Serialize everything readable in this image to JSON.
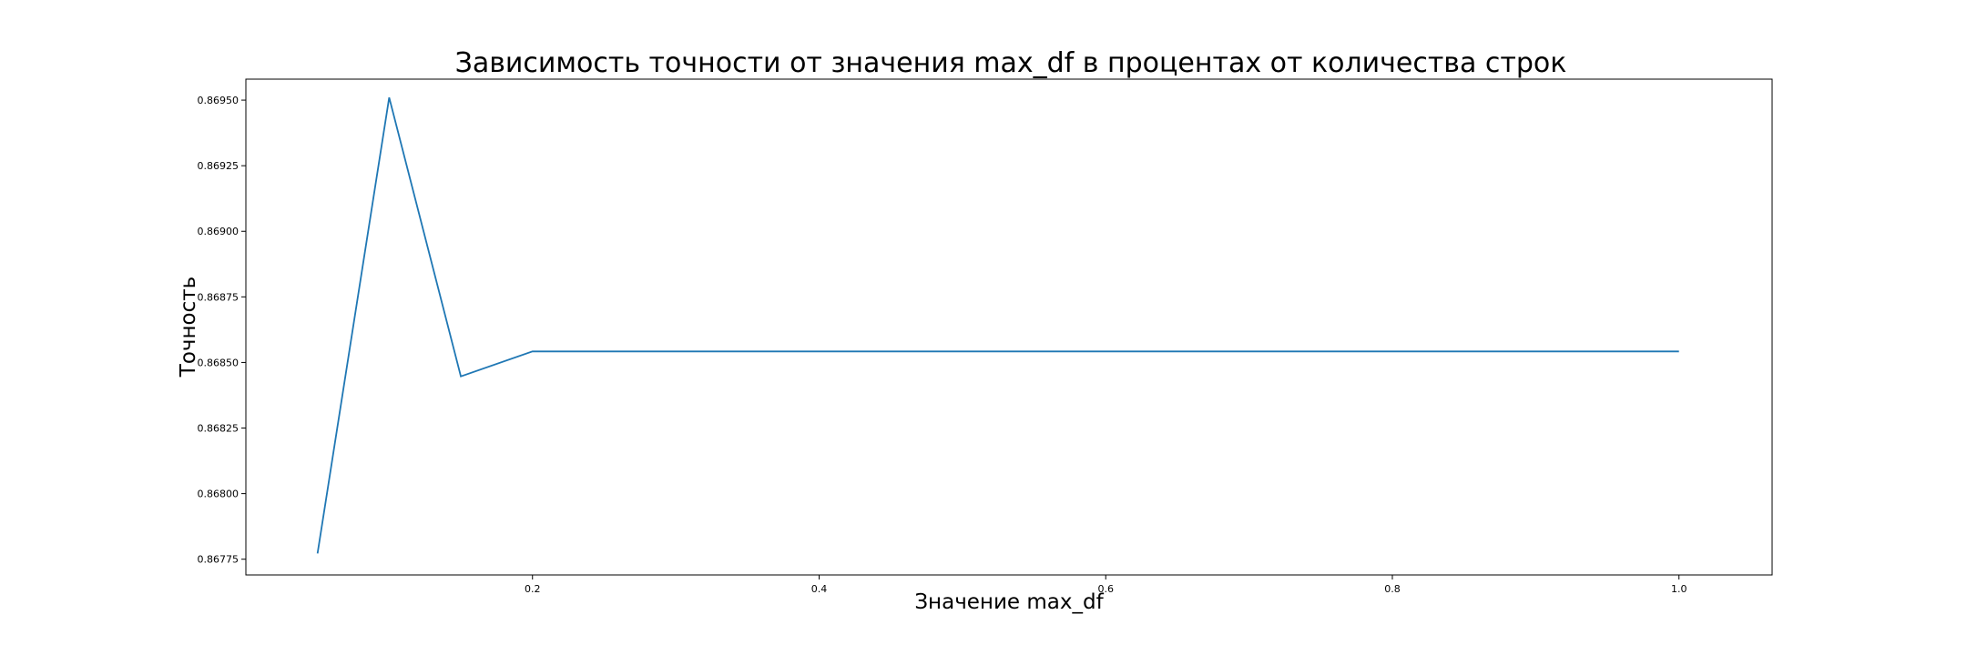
{
  "chart_data": {
    "type": "line",
    "title": "Зависимость точности от значения max_df в процентах от количества строк",
    "xlabel": "Значение max_df",
    "ylabel": "Точность",
    "xlim": [
      0.0,
      1.065
    ],
    "ylim": [
      0.86769,
      0.86958
    ],
    "grid": false,
    "xticks": [
      0.2,
      0.4,
      0.6,
      0.8,
      1.0
    ],
    "xtick_labels": [
      "0.2",
      "0.4",
      "0.6",
      "0.8",
      "1.0"
    ],
    "yticks": [
      0.86775,
      0.868,
      0.86825,
      0.8685,
      0.86875,
      0.869,
      0.86925,
      0.8695
    ],
    "ytick_labels": [
      "0.86775",
      "0.86800",
      "0.86825",
      "0.86850",
      "0.86875",
      "0.86900",
      "0.86925",
      "0.86950"
    ],
    "series": [
      {
        "color": "#1f77b4",
        "x": [
          0.05,
          0.1,
          0.15,
          0.2,
          0.25,
          0.3,
          0.35,
          0.4,
          0.45,
          0.5,
          0.55,
          0.6,
          0.65,
          0.7,
          0.75,
          0.8,
          0.85,
          0.9,
          0.95,
          1.0
        ],
        "y": [
          0.867772,
          0.86951,
          0.868447,
          0.868542,
          0.868542,
          0.868542,
          0.868542,
          0.868542,
          0.868542,
          0.868542,
          0.868542,
          0.868542,
          0.868542,
          0.868542,
          0.868542,
          0.868542,
          0.868542,
          0.868542,
          0.868542,
          0.868542
        ]
      }
    ]
  }
}
